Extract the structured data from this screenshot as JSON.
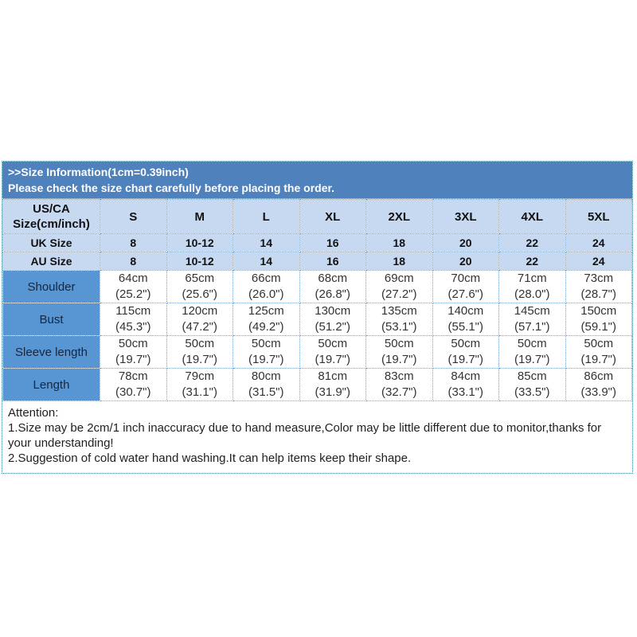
{
  "banner": {
    "line1": ">>Size Information(1cm=0.39inch)",
    "line2": "Please check the size chart carefully before placing the order."
  },
  "table": {
    "corner_label": "US/CA\nSize(cm/inch)",
    "size_headers": [
      "S",
      "M",
      "L",
      "XL",
      "2XL",
      "3XL",
      "4XL",
      "5XL"
    ],
    "uk_row": {
      "label": "UK Size",
      "values": [
        "8",
        "10-12",
        "14",
        "16",
        "18",
        "20",
        "22",
        "24"
      ]
    },
    "au_row": {
      "label": "AU Size",
      "values": [
        "8",
        "10-12",
        "14",
        "16",
        "18",
        "20",
        "22",
        "24"
      ]
    },
    "measure_rows": [
      {
        "label": "Shoulder",
        "values": [
          "64cm\n(25.2\")",
          "65cm\n(25.6\")",
          "66cm\n(26.0\")",
          "68cm\n(26.8\")",
          "69cm\n(27.2\")",
          "70cm\n(27.6\")",
          "71cm\n(28.0\")",
          "73cm\n(28.7\")"
        ]
      },
      {
        "label": "Bust",
        "values": [
          "115cm\n(45.3\")",
          "120cm\n(47.2\")",
          "125cm\n(49.2\")",
          "130cm\n(51.2\")",
          "135cm\n(53.1\")",
          "140cm\n(55.1\")",
          "145cm\n(57.1\")",
          "150cm\n(59.1\")"
        ]
      },
      {
        "label": "Sleeve length",
        "values": [
          "50cm\n(19.7\")",
          "50cm\n(19.7\")",
          "50cm\n(19.7\")",
          "50cm\n(19.7\")",
          "50cm\n(19.7\")",
          "50cm\n(19.7\")",
          "50cm\n(19.7\")",
          "50cm\n(19.7\")"
        ]
      },
      {
        "label": "Length",
        "values": [
          "78cm\n(30.7\")",
          "79cm\n(31.1\")",
          "80cm\n(31.5\")",
          "81cm\n(31.9\")",
          "83cm\n(32.7\")",
          "84cm\n(33.1\")",
          "85cm\n(33.5\")",
          "86cm\n(33.9\")"
        ]
      }
    ]
  },
  "attention": {
    "title": "Attention:",
    "line1": "1.Size may be 2cm/1 inch inaccuracy due to hand measure,Color may be little different due to monitor,thanks for your understanding!",
    "line2": "2.Suggestion of cold water hand washing.It can help items keep their shape."
  },
  "colors": {
    "banner_bg": "#4f81bd",
    "header_row_bg": "#c6d9f1",
    "measure_label_bg": "#5795d3",
    "outer_border": "#3c7d91",
    "inner_border": "#7ba2c9",
    "banner_text": "#ffffff"
  },
  "chart_data": {
    "type": "table",
    "title": ">>Size Information(1cm=0.39inch)",
    "subtitle": "Please check the size chart carefully before placing the order.",
    "columns": [
      "US/CA Size(cm/inch)",
      "S",
      "M",
      "L",
      "XL",
      "2XL",
      "3XL",
      "4XL",
      "5XL"
    ],
    "rows": [
      [
        "UK Size",
        "8",
        "10-12",
        "14",
        "16",
        "18",
        "20",
        "22",
        "24"
      ],
      [
        "AU Size",
        "8",
        "10-12",
        "14",
        "16",
        "18",
        "20",
        "22",
        "24"
      ],
      [
        "Shoulder",
        "64cm (25.2\")",
        "65cm (25.6\")",
        "66cm (26.0\")",
        "68cm (26.8\")",
        "69cm (27.2\")",
        "70cm (27.6\")",
        "71cm (28.0\")",
        "73cm (28.7\")"
      ],
      [
        "Bust",
        "115cm (45.3\")",
        "120cm (47.2\")",
        "125cm (49.2\")",
        "130cm (51.2\")",
        "135cm (53.1\")",
        "140cm (55.1\")",
        "145cm (57.1\")",
        "150cm (59.1\")"
      ],
      [
        "Sleeve length",
        "50cm (19.7\")",
        "50cm (19.7\")",
        "50cm (19.7\")",
        "50cm (19.7\")",
        "50cm (19.7\")",
        "50cm (19.7\")",
        "50cm (19.7\")",
        "50cm (19.7\")"
      ],
      [
        "Length",
        "78cm (30.7\")",
        "79cm (31.1\")",
        "80cm (31.5\")",
        "81cm (31.9\")",
        "83cm (32.7\")",
        "84cm (33.1\")",
        "85cm (33.5\")",
        "86cm (33.9\")"
      ]
    ],
    "notes": [
      "Attention:",
      "1.Size may be 2cm/1 inch inaccuracy due to hand measure,Color may be little different due to monitor,thanks for your understanding!",
      "2.Suggestion of cold water hand washing.It can help items keep their shape."
    ]
  }
}
